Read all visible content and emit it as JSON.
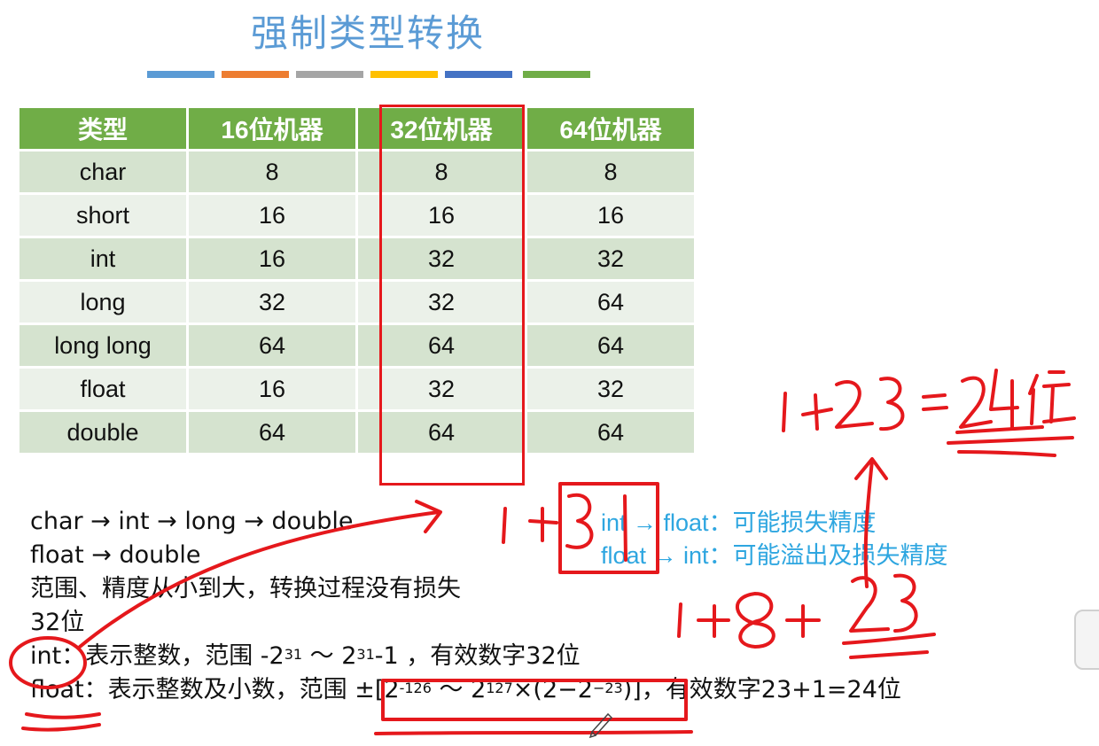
{
  "title": "强制类型转换",
  "underline_colors": [
    "#5b9bd5",
    "#ed7d31",
    "#a5a5a5",
    "#ffc000",
    "#4472c4",
    "#70ad47"
  ],
  "table": {
    "headers": [
      "类型",
      "16位机器",
      "32位机器",
      "64位机器"
    ],
    "rows": [
      [
        "char",
        "8",
        "8",
        "8"
      ],
      [
        "short",
        "16",
        "16",
        "16"
      ],
      [
        "int",
        "16",
        "32",
        "32"
      ],
      [
        "long",
        "32",
        "32",
        "64"
      ],
      [
        "long long",
        "64",
        "64",
        "64"
      ],
      [
        "float",
        "16",
        "32",
        "32"
      ],
      [
        "double",
        "64",
        "64",
        "64"
      ]
    ]
  },
  "notes": {
    "line1": "char → int → long → double",
    "line2": "float → double",
    "line3": "范围、精度从小到大，转换过程没有损失",
    "line4": "32位",
    "int_label": "int：",
    "int_desc": "表示整数，范围 -2",
    "int_exp1": "31",
    "int_mid": " ～ 2",
    "int_exp2": "31",
    "int_tail": "-1 ，有效数字32位",
    "float_label": "float：",
    "float_desc": "表示整数及小数，范围 ±[2",
    "float_exp1": "-126",
    "float_mid": " ～ 2",
    "float_exp2": "127",
    "float_mid2": "×(2−2",
    "float_exp3": "−23",
    "float_tail": ")]，有效数字23+1=24位"
  },
  "blue_notes": {
    "line1": "int → float：可能损失精度",
    "line2": "float → int：可能溢出及损失精度"
  },
  "handwriting": {
    "a": "1+23 =24位",
    "b": "1+31",
    "c": "1+8+23"
  },
  "colors": {
    "header_green": "#70ad47",
    "row_dark": "#d5e3cf",
    "row_light": "#ebf1e9",
    "annotation_red": "#e5181c",
    "blue_text": "#2ea6e0",
    "title_blue": "#5b9bd5"
  }
}
